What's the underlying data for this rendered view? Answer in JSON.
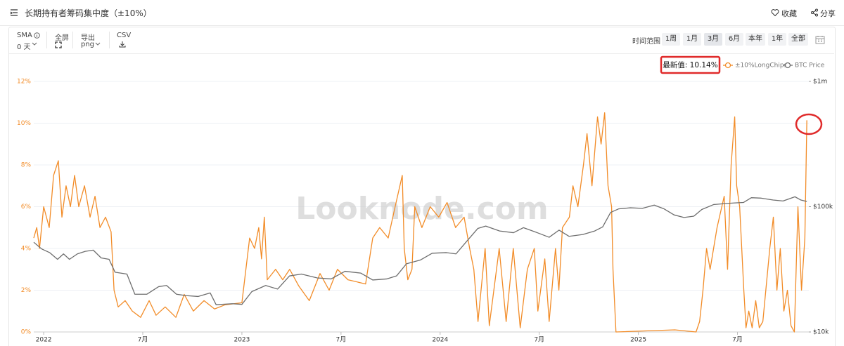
{
  "header": {
    "title": "长期持有者筹码集中度（±10%）",
    "favorite": "收藏",
    "share": "分享"
  },
  "toolbar": {
    "sma_label": "SMA",
    "sma_value": "0 天",
    "fullscreen": "全屏",
    "export": "导出",
    "export_format": "png",
    "csv": "CSV",
    "range_label": "时间范围",
    "ranges": [
      "1周",
      "1月",
      "3月",
      "6月",
      "本年",
      "1年",
      "全部"
    ]
  },
  "chart_data": {
    "type": "line",
    "watermark": "Looknode.com",
    "annotation": "最新值: 10.14%",
    "grid": true,
    "y2log": true,
    "legend": "top-right",
    "xlim": [
      2021.95,
      2025.86
    ],
    "xticks": [
      {
        "value": 2022,
        "label": "2022"
      },
      {
        "value": 2022.5,
        "label": "7月"
      },
      {
        "value": 2023,
        "label": "2023"
      },
      {
        "value": 2023.5,
        "label": "7月"
      },
      {
        "value": 2024,
        "label": "2024"
      },
      {
        "value": 2024.5,
        "label": "7月"
      },
      {
        "value": 2025,
        "label": "2025"
      },
      {
        "value": 2025.5,
        "label": "7月"
      }
    ],
    "ylim": [
      0,
      12
    ],
    "yticks": [
      {
        "value": 0,
        "label": "0%"
      },
      {
        "value": 2,
        "label": "2%"
      },
      {
        "value": 4,
        "label": "4%"
      },
      {
        "value": 6,
        "label": "6%"
      },
      {
        "value": 8,
        "label": "8%"
      },
      {
        "value": 10,
        "label": "10%"
      },
      {
        "value": 12,
        "label": "12%"
      }
    ],
    "y2lim": [
      10000,
      1000000
    ],
    "y2ticks": [
      {
        "value": 10000,
        "label": "$10k"
      },
      {
        "value": 100000,
        "label": "$100k"
      },
      {
        "value": 1000000,
        "label": "$1m"
      }
    ],
    "series": [
      {
        "name": "±10%LongChips",
        "color": "#f28c28",
        "x": [
          2021.95,
          2021.965,
          2021.979,
          2022.0,
          2022.028,
          2022.05,
          2022.074,
          2022.092,
          2022.113,
          2022.135,
          2022.156,
          2022.177,
          2022.206,
          2022.234,
          2022.259,
          2022.284,
          2022.312,
          2022.34,
          2022.355,
          2022.376,
          2022.411,
          2022.447,
          2022.489,
          2022.532,
          2022.567,
          2022.613,
          2022.667,
          2022.709,
          2022.755,
          2022.809,
          2022.862,
          2022.915,
          2023.0,
          2023.039,
          2023.064,
          2023.085,
          2023.099,
          2023.113,
          2023.128,
          2023.17,
          2023.206,
          2023.241,
          2023.287,
          2023.34,
          2023.394,
          2023.44,
          2023.482,
          2023.535,
          2023.624,
          2023.66,
          2023.695,
          2023.738,
          2023.773,
          2023.809,
          2023.819,
          2023.837,
          2023.858,
          2023.872,
          2023.908,
          2023.95,
          2023.993,
          2024.035,
          2024.078,
          2024.121,
          2024.149,
          2024.17,
          2024.191,
          2024.227,
          2024.248,
          2024.298,
          2024.333,
          2024.369,
          2024.404,
          2024.44,
          2024.475,
          2024.493,
          2024.528,
          2024.55,
          2024.582,
          2024.599,
          2024.617,
          2024.652,
          2024.67,
          2024.695,
          2024.723,
          2024.741,
          2024.766,
          2024.794,
          2024.812,
          2024.83,
          2024.847,
          2024.865,
          2024.872,
          2024.887,
          2025.184,
          2025.291,
          2025.309,
          2025.326,
          2025.344,
          2025.362,
          2025.397,
          2025.433,
          2025.45,
          2025.468,
          2025.486,
          2025.496,
          2025.511,
          2025.532,
          2025.543,
          2025.557,
          2025.574,
          2025.592,
          2025.61,
          2025.628,
          2025.663,
          2025.681,
          2025.699,
          2025.716,
          2025.734,
          2025.752,
          2025.77,
          2025.787,
          2025.805,
          2025.823,
          2025.84,
          2025.85
        ],
        "values": [
          4.5,
          5.0,
          4.0,
          6.0,
          5.0,
          7.5,
          8.2,
          5.5,
          7.0,
          6.0,
          7.5,
          6.0,
          7.0,
          5.5,
          6.5,
          5.0,
          5.5,
          4.8,
          2.0,
          1.2,
          1.5,
          1.0,
          0.7,
          1.5,
          0.8,
          1.2,
          0.7,
          1.8,
          1.0,
          1.5,
          1.1,
          1.3,
          1.4,
          4.5,
          4.0,
          5.0,
          3.5,
          5.5,
          2.5,
          3.0,
          2.5,
          3.0,
          2.2,
          1.5,
          2.8,
          2.0,
          3.0,
          2.5,
          2.3,
          4.5,
          5.0,
          4.5,
          6.0,
          7.5,
          4.0,
          2.5,
          3.0,
          6.0,
          5.0,
          6.0,
          5.5,
          6.2,
          5.0,
          5.5,
          4.0,
          3.0,
          0.5,
          4.0,
          0.3,
          4.0,
          0.5,
          4.0,
          0.2,
          3.0,
          4.0,
          1.0,
          3.5,
          0.5,
          4.0,
          2.0,
          5.0,
          5.5,
          7.0,
          6.0,
          8.0,
          9.5,
          7.0,
          10.3,
          9.0,
          10.5,
          7.0,
          6.0,
          3.0,
          0.0,
          0.1,
          0.0,
          0.5,
          2.0,
          4.0,
          3.0,
          5.0,
          6.5,
          3.0,
          8.0,
          10.3,
          7.0,
          6.0,
          2.0,
          0.2,
          1.0,
          0.2,
          1.5,
          0.2,
          0.5,
          4.0,
          5.5,
          2.0,
          4.0,
          1.0,
          2.0,
          0.3,
          0.0,
          6.0,
          2.0,
          4.5,
          10.14
        ]
      },
      {
        "name": "BTC Price",
        "color": "#6e6e6e",
        "axis": "y2",
        "x": [
          2021.95,
          2021.99,
          2022.03,
          2022.07,
          2022.1,
          2022.13,
          2022.17,
          2022.21,
          2022.25,
          2022.29,
          2022.33,
          2022.36,
          2022.42,
          2022.46,
          2022.52,
          2022.58,
          2022.62,
          2022.67,
          2022.72,
          2022.78,
          2022.84,
          2022.87,
          2022.95,
          2023.0,
          2023.05,
          2023.12,
          2023.18,
          2023.24,
          2023.3,
          2023.38,
          2023.45,
          2023.52,
          2023.6,
          2023.66,
          2023.73,
          2023.78,
          2023.83,
          2023.9,
          2023.96,
          2024.03,
          2024.08,
          2024.13,
          2024.19,
          2024.23,
          2024.3,
          2024.37,
          2024.42,
          2024.49,
          2024.55,
          2024.6,
          2024.65,
          2024.72,
          2024.78,
          2024.82,
          2024.86,
          2024.9,
          2024.96,
          2025.02,
          2025.08,
          2025.13,
          2025.18,
          2025.23,
          2025.28,
          2025.32,
          2025.38,
          2025.44,
          2025.48,
          2025.53,
          2025.57,
          2025.62,
          2025.68,
          2025.73,
          2025.79,
          2025.82,
          2025.85
        ],
        "values": [
          52000,
          46000,
          43000,
          38000,
          42000,
          38000,
          42000,
          44000,
          45000,
          39000,
          38000,
          30000,
          29000,
          20000,
          20000,
          23000,
          23500,
          20000,
          19500,
          19200,
          20500,
          16500,
          16800,
          16600,
          21000,
          23500,
          22000,
          28000,
          29000,
          27000,
          26500,
          30500,
          29500,
          26000,
          26500,
          28000,
          35000,
          37500,
          42500,
          43000,
          42000,
          52000,
          67000,
          70000,
          64000,
          62000,
          68000,
          62000,
          57000,
          65000,
          58000,
          60000,
          64000,
          69000,
          90000,
          96000,
          98000,
          97000,
          103000,
          96000,
          86000,
          82000,
          84000,
          95000,
          104000,
          106000,
          107000,
          108000,
          118000,
          117000,
          113000,
          111000,
          120000,
          113000,
          110000
        ]
      }
    ]
  }
}
